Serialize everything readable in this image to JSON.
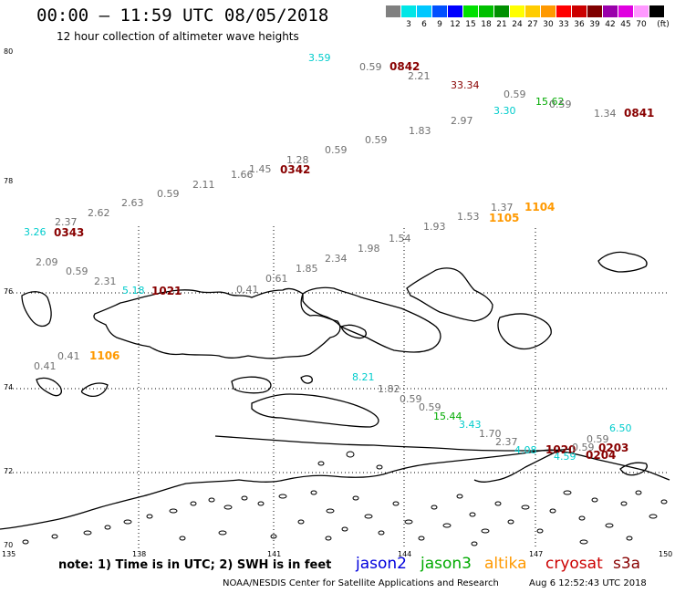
{
  "header": {
    "title": "00:00 – 11:59 UTC 08/05/2018",
    "subtitle": "12 hour collection of altimeter wave heights"
  },
  "legend": {
    "unit": "(ft)",
    "items": [
      {
        "label": "",
        "color": "#808080"
      },
      {
        "label": "3",
        "color": "#00e6e6"
      },
      {
        "label": "6",
        "color": "#00c8ff"
      },
      {
        "label": "9",
        "color": "#0050ff"
      },
      {
        "label": "12",
        "color": "#0000ff"
      },
      {
        "label": "15",
        "color": "#00e000"
      },
      {
        "label": "18",
        "color": "#00c000"
      },
      {
        "label": "21",
        "color": "#009000"
      },
      {
        "label": "24",
        "color": "#ffff00"
      },
      {
        "label": "27",
        "color": "#ffcc00"
      },
      {
        "label": "30",
        "color": "#ff9900"
      },
      {
        "label": "33",
        "color": "#ff0000"
      },
      {
        "label": "36",
        "color": "#cc0000"
      },
      {
        "label": "39",
        "color": "#800000"
      },
      {
        "label": "42",
        "color": "#9900aa"
      },
      {
        "label": "45",
        "color": "#e000e0"
      },
      {
        "label": "70",
        "color": "#ff99ff"
      },
      {
        "label": "",
        "color": "#000000"
      }
    ]
  },
  "axes": {
    "lat_labels": [
      "80",
      "78",
      "76",
      "74",
      "72",
      "70"
    ],
    "lon_labels": [
      "135",
      "138",
      "141",
      "144",
      "147",
      "150"
    ]
  },
  "colors": {
    "gray": "#707070",
    "cyan": "#00cccc",
    "green": "#00aa00",
    "orange": "#ff9900",
    "darkred": "#880000",
    "blue": "#0000dd",
    "red": "#cc0000"
  },
  "observations": [
    {
      "text": "3.59",
      "color": "cyan"
    },
    {
      "text": "0.59",
      "color": "gray"
    },
    {
      "text": "0842",
      "color": "darkred",
      "time": true
    },
    {
      "text": "2.21",
      "color": "gray"
    },
    {
      "text": "33.34",
      "color": "darkred"
    },
    {
      "text": "0.59",
      "color": "gray"
    },
    {
      "text": "15.62",
      "color": "green"
    },
    {
      "text": "0.59",
      "color": "gray"
    },
    {
      "text": "3.30",
      "color": "cyan"
    },
    {
      "text": "1.34",
      "color": "gray"
    },
    {
      "text": "0841",
      "color": "darkred",
      "time": true
    },
    {
      "text": "2.97",
      "color": "gray"
    },
    {
      "text": "1.83",
      "color": "gray"
    },
    {
      "text": "0.59",
      "color": "gray"
    },
    {
      "text": "0.59",
      "color": "gray"
    },
    {
      "text": "1.28",
      "color": "gray"
    },
    {
      "text": "1.45",
      "color": "gray"
    },
    {
      "text": "0342",
      "color": "darkred",
      "time": true
    },
    {
      "text": "1.66",
      "color": "gray"
    },
    {
      "text": "2.11",
      "color": "gray"
    },
    {
      "text": "0.59",
      "color": "gray"
    },
    {
      "text": "2.63",
      "color": "gray"
    },
    {
      "text": "2.62",
      "color": "gray"
    },
    {
      "text": "2.37",
      "color": "gray"
    },
    {
      "text": "3.26",
      "color": "cyan"
    },
    {
      "text": "0343",
      "color": "darkred",
      "time": true
    },
    {
      "text": "1.37",
      "color": "gray"
    },
    {
      "text": "1104",
      "color": "orange",
      "time": true
    },
    {
      "text": "1.53",
      "color": "gray"
    },
    {
      "text": "1105",
      "color": "orange",
      "time": true
    },
    {
      "text": "1.93",
      "color": "gray"
    },
    {
      "text": "1.54",
      "color": "gray"
    },
    {
      "text": "1.98",
      "color": "gray"
    },
    {
      "text": "2.34",
      "color": "gray"
    },
    {
      "text": "1.85",
      "color": "gray"
    },
    {
      "text": "0.61",
      "color": "gray"
    },
    {
      "text": "0.41",
      "color": "gray"
    },
    {
      "text": "2.09",
      "color": "gray"
    },
    {
      "text": "0.59",
      "color": "gray"
    },
    {
      "text": "2.31",
      "color": "gray"
    },
    {
      "text": "5.18",
      "color": "cyan"
    },
    {
      "text": "1021",
      "color": "darkred",
      "time": true
    },
    {
      "text": "0.41",
      "color": "gray"
    },
    {
      "text": "1106",
      "color": "orange",
      "time": true
    },
    {
      "text": "0.41",
      "color": "gray"
    },
    {
      "text": "8.21",
      "color": "cyan"
    },
    {
      "text": "1.82",
      "color": "gray"
    },
    {
      "text": "0.59",
      "color": "gray"
    },
    {
      "text": "0.59",
      "color": "gray"
    },
    {
      "text": "15.44",
      "color": "green"
    },
    {
      "text": "3.43",
      "color": "cyan"
    },
    {
      "text": "1.70",
      "color": "gray"
    },
    {
      "text": "2.37",
      "color": "gray"
    },
    {
      "text": "4.08",
      "color": "cyan"
    },
    {
      "text": "1020",
      "color": "darkred",
      "time": true
    },
    {
      "text": "4.59",
      "color": "cyan"
    },
    {
      "text": "0.59",
      "color": "gray"
    },
    {
      "text": "0.59",
      "color": "gray"
    },
    {
      "text": "6.50",
      "color": "cyan"
    },
    {
      "text": "0203",
      "color": "darkred",
      "time": true
    },
    {
      "text": "0204",
      "color": "darkred",
      "time": true
    }
  ],
  "footer": {
    "note": "note: 1) Time is in UTC; 2) SWH is in feet",
    "satellites": [
      {
        "name": "jason2",
        "color": "blue"
      },
      {
        "name": "jason3",
        "color": "green"
      },
      {
        "name": "altika",
        "color": "orange"
      },
      {
        "name": "cryosat",
        "color": "red"
      },
      {
        "name": "s3a",
        "color": "darkred"
      }
    ],
    "credit": "NOAA/NESDIS Center for Satellite Applications and Research",
    "timestamp": "Aug  6 12:52:43 UTC 2018"
  }
}
